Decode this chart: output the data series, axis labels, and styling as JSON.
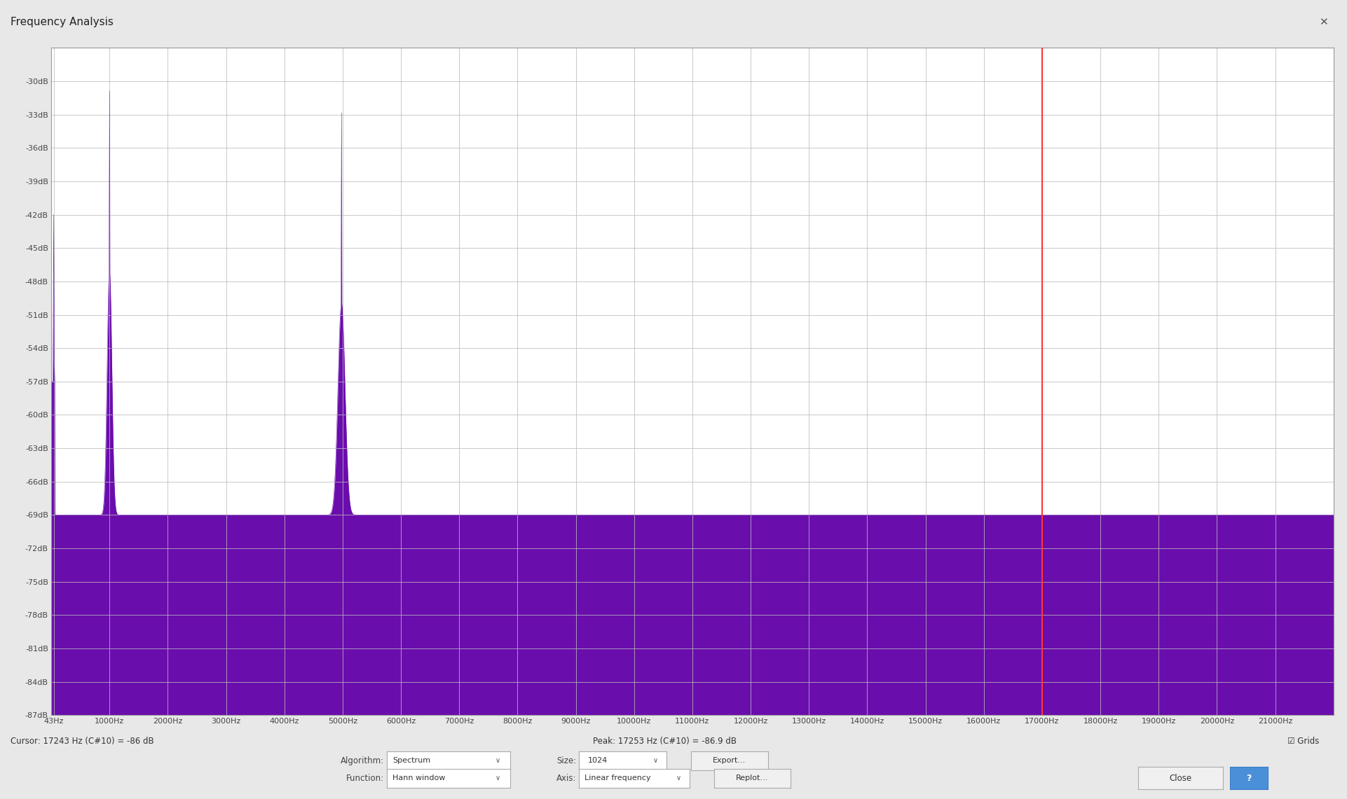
{
  "title": "Frequency Analysis",
  "window_bg_color": "#e8e8e8",
  "titlebar_bg_color": "#f0f0f0",
  "plot_bg_color": "#ffffff",
  "grid_color": "#bbbbbb",
  "spectrum_fill_color": "#6a0dad",
  "spectrum_line_color": "#6a0dad",
  "red_line_freq": 17000,
  "red_line_color": "#ff3333",
  "y_min": -87,
  "y_max": -27,
  "y_ticks": [
    -30,
    -33,
    -36,
    -39,
    -42,
    -45,
    -48,
    -51,
    -54,
    -57,
    -60,
    -63,
    -66,
    -69,
    -72,
    -75,
    -78,
    -81,
    -84,
    -87
  ],
  "x_min": 0,
  "x_max": 22000,
  "x_ticks": [
    43,
    1000,
    2000,
    3000,
    4000,
    5000,
    6000,
    7000,
    8000,
    9000,
    10000,
    11000,
    12000,
    13000,
    14000,
    15000,
    16000,
    17000,
    18000,
    19000,
    20000,
    21000
  ],
  "x_tick_labels": [
    "43Hz",
    "1000Hz",
    "2000Hz",
    "3000Hz",
    "4000Hz",
    "5000Hz",
    "6000Hz",
    "7000Hz",
    "8000Hz",
    "9000Hz",
    "10000Hz",
    "11000Hz",
    "12000Hz",
    "13000Hz",
    "14000Hz",
    "15000Hz",
    "16000Hz",
    "17000Hz",
    "18000Hz",
    "19000Hz",
    "20000Hz",
    "21000Hz"
  ],
  "cursor_text": "Cursor: 17243 Hz (C#10) = -86 dB",
  "peak_text": "Peak: 17253 Hz (C#10) = -86.9 dB",
  "algorithm_label": "Algorithm:",
  "algorithm_value": "Spectrum",
  "size_label": "Size:",
  "size_value": "1024",
  "function_label": "Function:",
  "function_value": "Hann window",
  "axis_label": "Axis:",
  "axis_value": "Linear frequency",
  "grids_label": "☑ Grids",
  "export_label": "Export...",
  "replot_label": "Replot...",
  "close_label": "Close"
}
